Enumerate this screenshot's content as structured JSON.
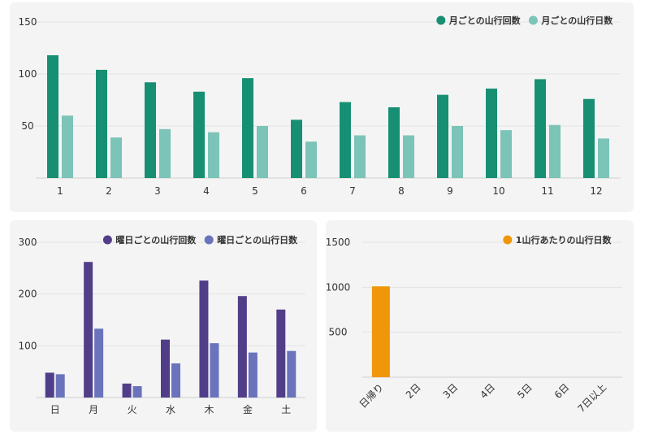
{
  "chart_data": [
    {
      "id": "month",
      "type": "bar",
      "categories": [
        "1",
        "2",
        "3",
        "4",
        "5",
        "6",
        "7",
        "8",
        "9",
        "10",
        "11",
        "12"
      ],
      "series": [
        {
          "name": "月ごとの山行回数",
          "color": "#178f72",
          "values": [
            118,
            104,
            92,
            83,
            96,
            56,
            73,
            68,
            80,
            86,
            95,
            76
          ]
        },
        {
          "name": "月ごとの山行日数",
          "color": "#7cc3b8",
          "values": [
            60,
            39,
            47,
            44,
            50,
            35,
            41,
            41,
            50,
            46,
            51,
            38
          ]
        }
      ],
      "yticks": [
        50,
        100,
        150
      ],
      "ylim": [
        0,
        150
      ],
      "legend": "top-right",
      "grid": true
    },
    {
      "id": "week",
      "type": "bar",
      "categories": [
        "日",
        "月",
        "火",
        "水",
        "木",
        "金",
        "土"
      ],
      "series": [
        {
          "name": "曜日ごとの山行回数",
          "color": "#513e88",
          "values": [
            48,
            262,
            27,
            112,
            226,
            196,
            170
          ]
        },
        {
          "name": "曜日ごとの山行日数",
          "color": "#6a73bb",
          "values": [
            45,
            133,
            22,
            66,
            105,
            87,
            90
          ]
        }
      ],
      "yticks": [
        100,
        200,
        300
      ],
      "ylim": [
        0,
        300
      ],
      "legend": "top-right",
      "grid": true
    },
    {
      "id": "stay",
      "type": "bar",
      "categories": [
        "日帰り",
        "2日",
        "3日",
        "4日",
        "5日",
        "6日",
        "7日以上"
      ],
      "series": [
        {
          "name": "1山行あたりの山行日数",
          "color": "#f0960a",
          "values": [
            1010,
            0,
            0,
            0,
            0,
            0,
            0
          ]
        }
      ],
      "yticks": [
        500,
        1000,
        1500
      ],
      "ylim": [
        0,
        1500
      ],
      "legend": "top-right",
      "grid": true,
      "xlabel_rotate": true
    }
  ]
}
